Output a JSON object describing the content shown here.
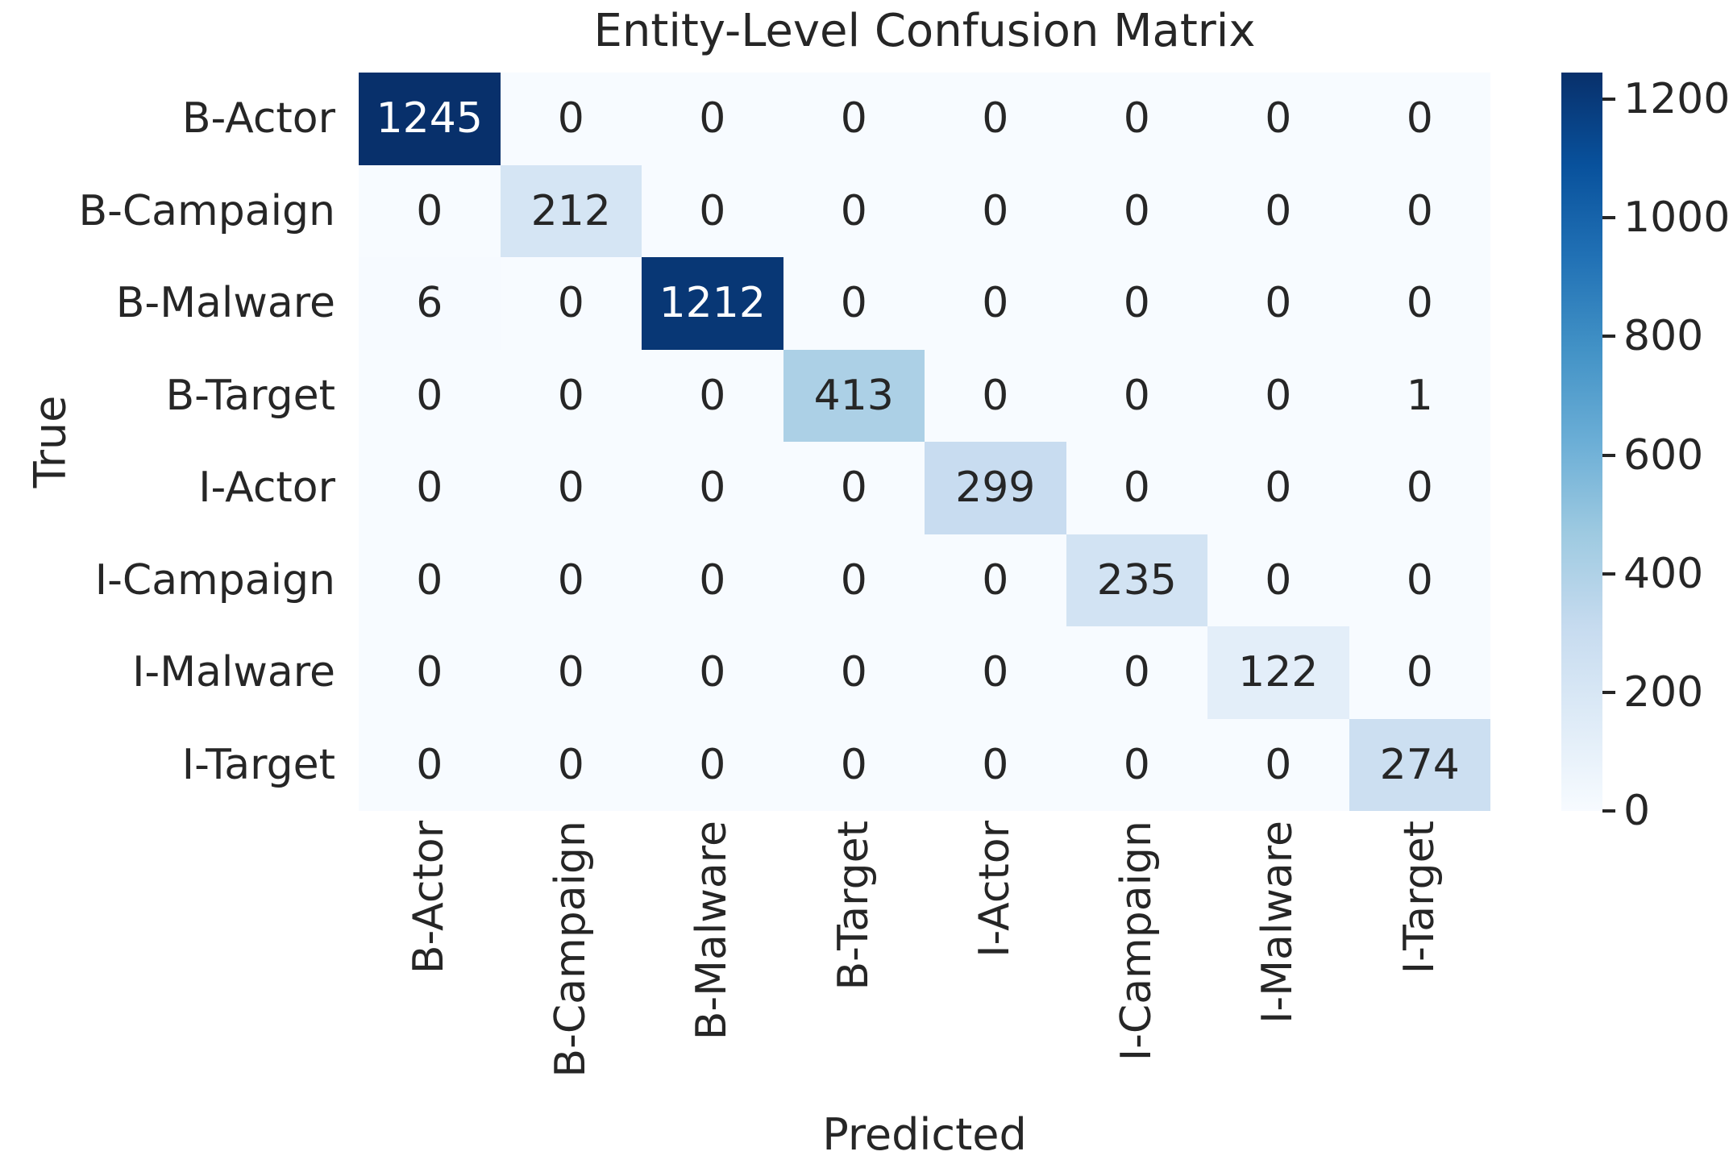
{
  "figure": {
    "title": "Entity-Level Confusion Matrix",
    "xlabel": "Predicted",
    "ylabel": "True"
  },
  "chart_data": {
    "type": "heatmap",
    "title": "Entity-Level Confusion Matrix",
    "xlabel": "Predicted",
    "ylabel": "True",
    "x_tick_labels": [
      "B-Actor",
      "B-Campaign",
      "B-Malware",
      "B-Target",
      "I-Actor",
      "I-Campaign",
      "I-Malware",
      "I-Target"
    ],
    "y_tick_labels": [
      "B-Actor",
      "B-Campaign",
      "B-Malware",
      "B-Target",
      "I-Actor",
      "I-Campaign",
      "I-Malware",
      "I-Target"
    ],
    "matrix": [
      [
        1245,
        0,
        0,
        0,
        0,
        0,
        0,
        0
      ],
      [
        0,
        212,
        0,
        0,
        0,
        0,
        0,
        0
      ],
      [
        6,
        0,
        1212,
        0,
        0,
        0,
        0,
        0
      ],
      [
        0,
        0,
        0,
        413,
        0,
        0,
        0,
        1
      ],
      [
        0,
        0,
        0,
        0,
        299,
        0,
        0,
        0
      ],
      [
        0,
        0,
        0,
        0,
        0,
        235,
        0,
        0
      ],
      [
        0,
        0,
        0,
        0,
        0,
        0,
        122,
        0
      ],
      [
        0,
        0,
        0,
        0,
        0,
        0,
        0,
        274
      ]
    ],
    "vmin": 0,
    "vmax": 1245,
    "colormap_name": "Blues",
    "colormap_stops": [
      [
        0.0,
        "#f7fbff"
      ],
      [
        0.125,
        "#deebf7"
      ],
      [
        0.25,
        "#c6dbef"
      ],
      [
        0.375,
        "#9ecae1"
      ],
      [
        0.5,
        "#6baed6"
      ],
      [
        0.625,
        "#4292c6"
      ],
      [
        0.75,
        "#2171b5"
      ],
      [
        0.875,
        "#08519c"
      ],
      [
        1.0,
        "#08306b"
      ]
    ],
    "colorbar_tick_values": [
      0,
      200,
      400,
      600,
      800,
      1000,
      1200
    ],
    "annotation_color_dark": "#262626",
    "annotation_color_light": "#ffffff",
    "white_text_threshold": 0.6,
    "grid": false,
    "legend_position": "right-colorbar"
  }
}
